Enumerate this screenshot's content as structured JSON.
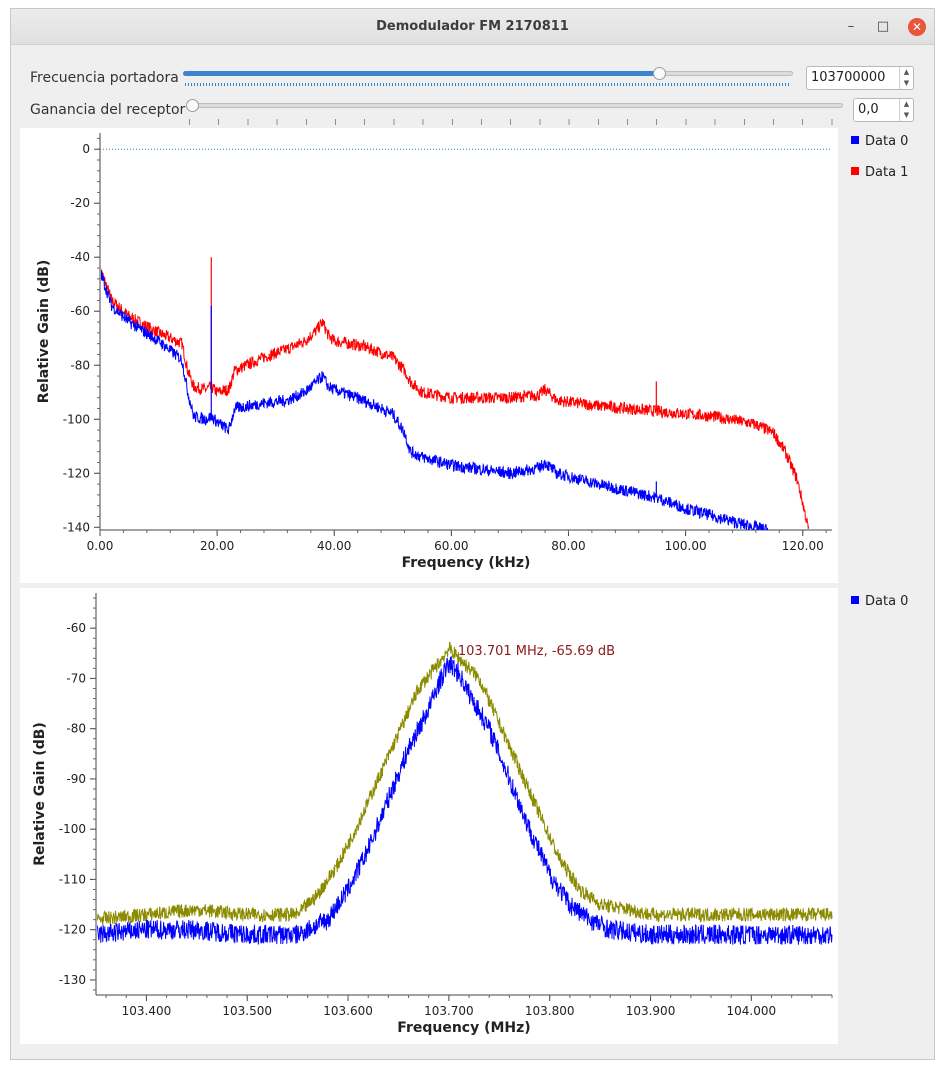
{
  "window": {
    "title": "Demodulador FM 2170811",
    "minimize_glyph": "–",
    "maximize_glyph": "□",
    "close_glyph": "✕"
  },
  "controls": {
    "carrier": {
      "label": "Frecuencia portadora",
      "value": "103700000",
      "slider_fraction": 0.78
    },
    "gain": {
      "label": "Ganancia del receptor",
      "value": "0,0",
      "slider_fraction": 0.0
    },
    "spin_up_glyph": "▲",
    "spin_down_glyph": "▼"
  },
  "colors": {
    "data0": "#0000ff",
    "data1": "#ff0000",
    "max_hold": "#8b8b00",
    "marker": "#8b1a1a",
    "grid_ref": "#1f77b4"
  },
  "chart_data": [
    {
      "type": "line",
      "xlabel": "Frequency (kHz)",
      "ylabel": "Relative Gain (dB)",
      "xlim": [
        0,
        125
      ],
      "ylim": [
        -141,
        6
      ],
      "x_ticks": [
        "0.00",
        "20.00",
        "40.00",
        "60.00",
        "80.00",
        "100.00",
        "120.00"
      ],
      "y_ticks": [
        "0",
        "-20",
        "-40",
        "-60",
        "-80",
        "-100",
        "-120",
        "-140"
      ],
      "reference_line_y": 0,
      "legend": [
        "Data 0",
        "Data 1"
      ],
      "series": [
        {
          "name": "Data 0",
          "x": [
            0,
            2,
            5,
            10,
            14,
            15,
            16,
            18,
            19,
            20,
            22,
            23,
            28,
            32,
            35,
            37,
            38,
            39,
            40,
            45,
            50,
            52,
            53,
            55,
            60,
            70,
            75,
            76,
            78,
            85,
            95,
            100,
            105,
            110,
            114
          ],
          "y": [
            -45,
            -58,
            -64,
            -71,
            -78,
            -90,
            -99,
            -100,
            -99,
            -101,
            -104,
            -96,
            -94,
            -93,
            -90,
            -86,
            -84,
            -88,
            -89,
            -93,
            -98,
            -105,
            -112,
            -114,
            -117,
            -120,
            -118,
            -116,
            -120,
            -124,
            -129,
            -133,
            -136,
            -139,
            -141
          ]
        },
        {
          "name": "Data 1",
          "x": [
            0,
            2,
            5,
            10,
            14,
            15,
            16,
            18,
            19,
            20,
            22,
            23,
            28,
            32,
            35,
            37,
            38,
            39,
            40,
            45,
            50,
            52,
            53,
            55,
            60,
            70,
            75,
            76,
            78,
            85,
            95,
            100,
            105,
            110,
            112,
            115,
            117,
            119,
            120,
            121
          ],
          "y": [
            -44,
            -56,
            -62,
            -68,
            -72,
            -82,
            -88,
            -89,
            -88,
            -90,
            -89,
            -82,
            -77,
            -74,
            -71,
            -67,
            -64,
            -69,
            -71,
            -73,
            -77,
            -82,
            -86,
            -90,
            -92,
            -92,
            -91,
            -89,
            -93,
            -95,
            -97,
            -98,
            -99,
            -101,
            -102,
            -105,
            -112,
            -122,
            -131,
            -141
          ]
        }
      ],
      "spikes": [
        {
          "series": "Data 1",
          "x": 19,
          "y": -40
        },
        {
          "series": "Data 0",
          "x": 19,
          "y": -58
        },
        {
          "series": "Data 1",
          "x": 95,
          "y": -86
        },
        {
          "series": "Data 0",
          "x": 95,
          "y": -123
        }
      ]
    },
    {
      "type": "line",
      "xlabel": "Frequency (MHz)",
      "ylabel": "Relative Gain (dB)",
      "xlim": [
        103.35,
        104.08
      ],
      "ylim": [
        -133,
        -53
      ],
      "x_ticks": [
        "103.400",
        "103.500",
        "103.600",
        "103.700",
        "103.800",
        "103.900",
        "104.000"
      ],
      "y_ticks": [
        "-60",
        "-70",
        "-80",
        "-90",
        "-100",
        "-110",
        "-120",
        "-130"
      ],
      "legend": [
        "Data 0"
      ],
      "marker_label": "103.701 MHz, -65.69 dB",
      "series": [
        {
          "name": "Data 0",
          "x": [
            103.35,
            103.4,
            103.45,
            103.5,
            103.55,
            103.58,
            103.6,
            103.62,
            103.64,
            103.66,
            103.68,
            103.69,
            103.7,
            103.71,
            103.72,
            103.74,
            103.76,
            103.78,
            103.8,
            103.82,
            103.84,
            103.86,
            103.9,
            103.95,
            104.0,
            104.08
          ],
          "y": [
            -121,
            -120,
            -120,
            -121,
            -121,
            -118,
            -112,
            -104,
            -94,
            -84,
            -76,
            -71,
            -67,
            -69,
            -73,
            -80,
            -90,
            -100,
            -109,
            -115,
            -118,
            -120,
            -121,
            -121,
            -121,
            -121
          ]
        }
      ],
      "max_hold": {
        "x": [
          103.35,
          103.4,
          103.45,
          103.5,
          103.55,
          103.57,
          103.59,
          103.61,
          103.63,
          103.65,
          103.67,
          103.69,
          103.7,
          103.71,
          103.73,
          103.75,
          103.77,
          103.79,
          103.81,
          103.83,
          103.85,
          103.88,
          103.9,
          103.95,
          104.0,
          104.08
        ],
        "y": [
          -118,
          -117,
          -116,
          -117,
          -117,
          -113,
          -107,
          -99,
          -90,
          -81,
          -72,
          -67,
          -64,
          -66,
          -70,
          -79,
          -88,
          -97,
          -106,
          -112,
          -115,
          -116,
          -117,
          -117,
          -117,
          -117
        ]
      }
    }
  ]
}
